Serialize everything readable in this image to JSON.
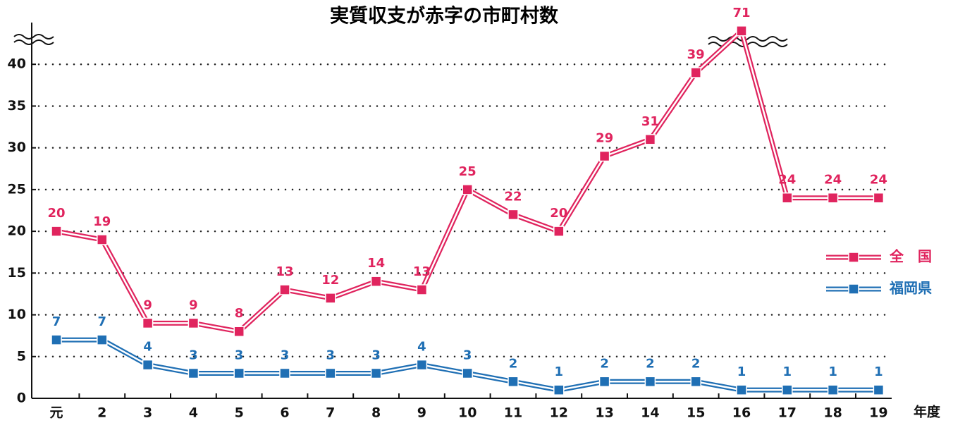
{
  "chart_data": {
    "type": "line",
    "title": "実質収支が赤字の市町村数",
    "x_label": "年度",
    "categories": [
      "元",
      "2",
      "3",
      "4",
      "5",
      "6",
      "7",
      "8",
      "9",
      "10",
      "11",
      "12",
      "13",
      "14",
      "15",
      "16",
      "17",
      "18",
      "19"
    ],
    "series": [
      {
        "name": "全　国",
        "color": "#e0245e",
        "values": [
          20,
          19,
          9,
          9,
          8,
          13,
          12,
          14,
          13,
          25,
          22,
          20,
          29,
          31,
          39,
          71,
          24,
          24,
          24
        ]
      },
      {
        "name": "福岡県",
        "color": "#1f6fb4",
        "values": [
          7,
          7,
          4,
          3,
          3,
          3,
          3,
          3,
          4,
          3,
          2,
          1,
          2,
          2,
          2,
          1,
          1,
          1,
          1
        ]
      }
    ],
    "ylim": [
      0,
      72
    ],
    "ybreak": [
      43,
      70
    ],
    "yticks": [
      0,
      5,
      10,
      15,
      20,
      25,
      30,
      35,
      40
    ],
    "grid": true,
    "legend": "right"
  }
}
